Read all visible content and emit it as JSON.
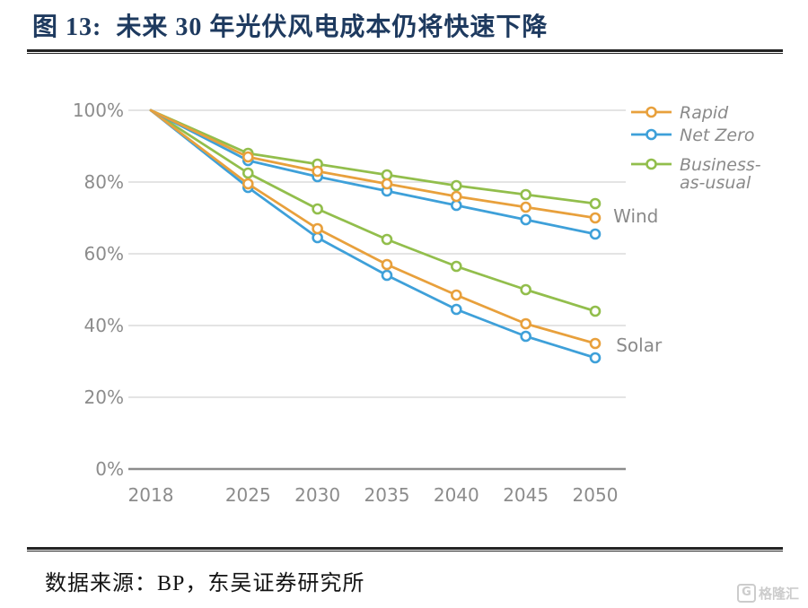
{
  "header": {
    "title": "图 13:  未来 30 年光伏风电成本仍将快速下降"
  },
  "footer": {
    "source": "数据来源：BP，东吴证券研究所",
    "watermark": "格隆汇"
  },
  "colors": {
    "rapid": "#E8A03C",
    "net_zero": "#3EA0D9",
    "business_as_usual": "#92BE4C",
    "title_navy": "#1e3a5f",
    "axis_gray": "#8C8C8C",
    "grid_gray": "#DCDCDC"
  },
  "chart_data": {
    "type": "line",
    "title": "",
    "xlabel": "",
    "ylabel": "",
    "x": [
      2018,
      2025,
      2030,
      2035,
      2040,
      2045,
      2050
    ],
    "x_tick_labels": [
      "2018",
      "2025",
      "2030",
      "2035",
      "2040",
      "2045",
      "2050"
    ],
    "xlim": [
      2018,
      2050
    ],
    "ylim": [
      0,
      100
    ],
    "y_ticks": [
      0,
      20,
      40,
      60,
      80,
      100
    ],
    "y_tick_labels": [
      "0%",
      "20%",
      "40%",
      "60%",
      "80%",
      "100%"
    ],
    "grid": true,
    "legend_position": "top-right",
    "series": [
      {
        "name": "Wind Rapid",
        "group": "Wind",
        "scenario": "Rapid",
        "color": "#E8A03C",
        "values": [
          100,
          87,
          83,
          79.5,
          76,
          73,
          70
        ]
      },
      {
        "name": "Wind Net Zero",
        "group": "Wind",
        "scenario": "Net Zero",
        "color": "#3EA0D9",
        "values": [
          100,
          86,
          81.5,
          77.5,
          73.5,
          69.5,
          65.5
        ]
      },
      {
        "name": "Wind Business-as-usual",
        "group": "Wind",
        "scenario": "Business-as-usual",
        "color": "#92BE4C",
        "values": [
          100,
          88,
          85,
          82,
          79,
          76.5,
          74
        ]
      },
      {
        "name": "Solar Rapid",
        "group": "Solar",
        "scenario": "Rapid",
        "color": "#E8A03C",
        "values": [
          100,
          79.5,
          67,
          57,
          48.5,
          40.5,
          35
        ]
      },
      {
        "name": "Solar Net Zero",
        "group": "Solar",
        "scenario": "Net Zero",
        "color": "#3EA0D9",
        "values": [
          100,
          78.5,
          64.5,
          54,
          44.5,
          37,
          31
        ]
      },
      {
        "name": "Solar Business-as-usual",
        "group": "Solar",
        "scenario": "Business-as-usual",
        "color": "#92BE4C",
        "values": [
          100,
          82.5,
          72.5,
          64,
          56.5,
          50,
          44
        ]
      }
    ],
    "legend": [
      {
        "label": "Rapid",
        "label_lines": [
          "Rapid"
        ],
        "color": "#E8A03C"
      },
      {
        "label": "Net Zero",
        "label_lines": [
          "Net Zero"
        ],
        "color": "#3EA0D9"
      },
      {
        "label": "Business-as-usual",
        "label_lines": [
          "Business-",
          "as-usual"
        ],
        "color": "#92BE4C"
      }
    ],
    "annotations": [
      {
        "text": "Wind",
        "x": 2051.3,
        "y": 70.5
      },
      {
        "text": "Solar",
        "x": 2051.5,
        "y": 34.5
      }
    ]
  }
}
